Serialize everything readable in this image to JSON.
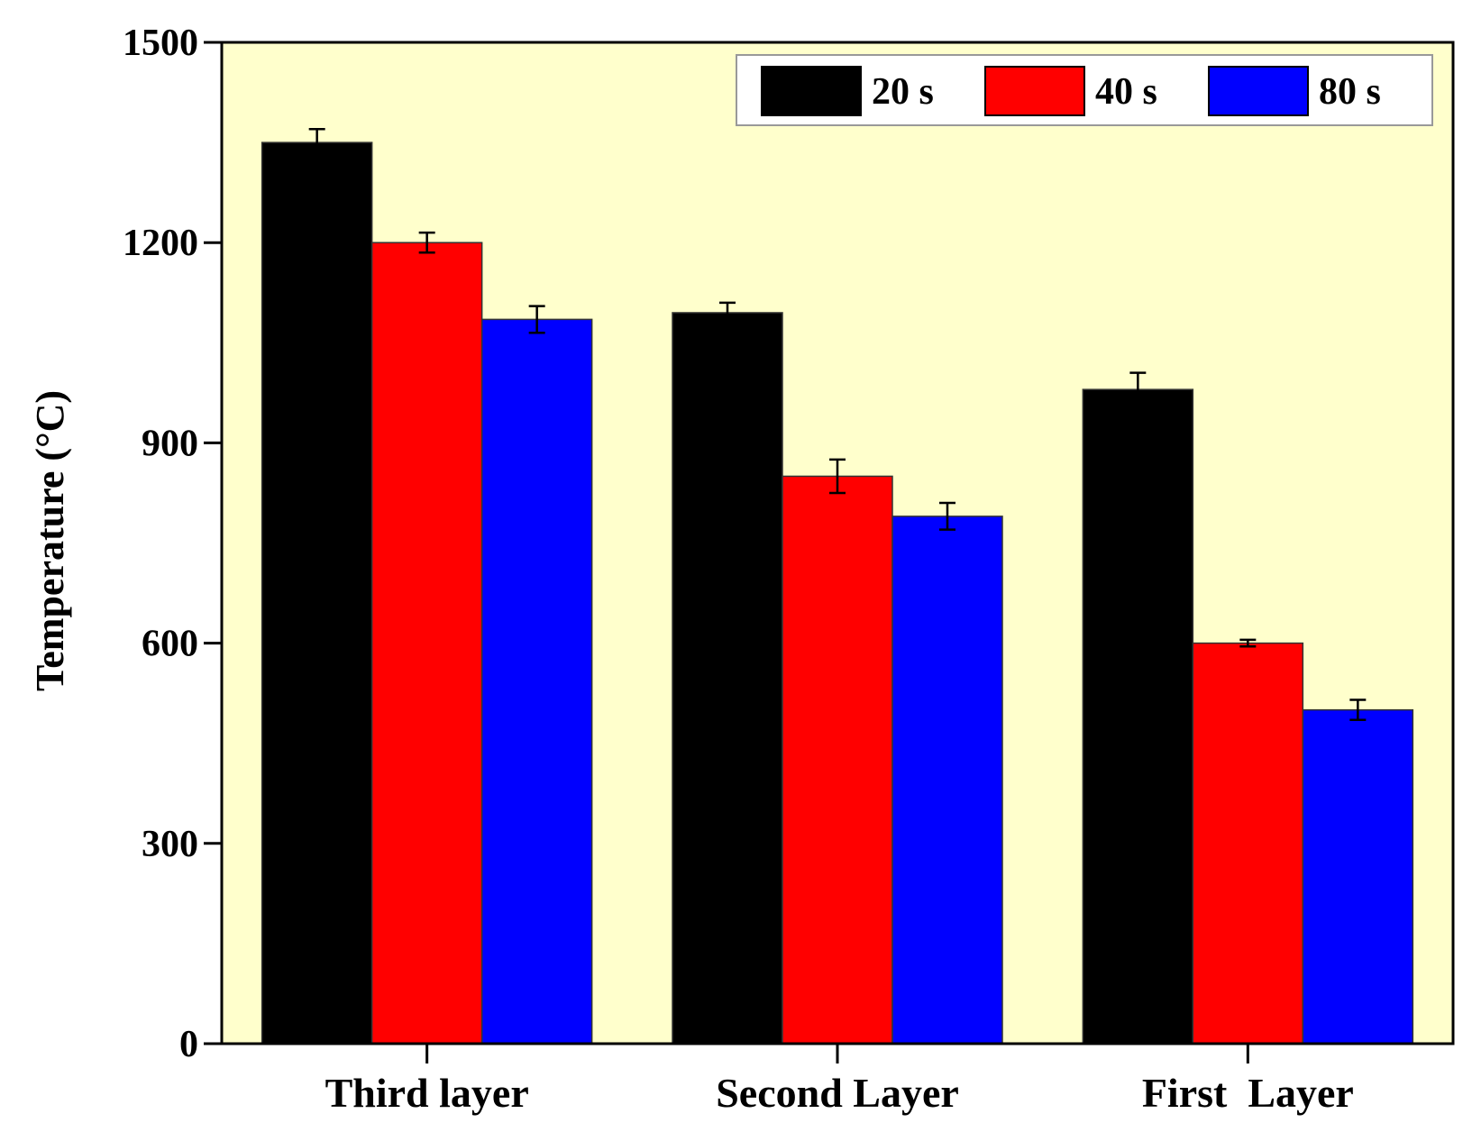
{
  "chart_data": {
    "type": "bar",
    "y_label": "Temperature (°C)",
    "categories": [
      "Third layer",
      "Second Layer",
      "First  Layer"
    ],
    "series": [
      {
        "name": "20 s",
        "color": "#000000",
        "values": [
          1350,
          1095,
          980
        ],
        "errors": [
          20,
          15,
          25
        ]
      },
      {
        "name": "40 s",
        "color": "#ff0000",
        "values": [
          1200,
          850,
          600
        ],
        "errors": [
          15,
          25,
          5
        ]
      },
      {
        "name": "80 s",
        "color": "#0000ff",
        "values": [
          1085,
          790,
          500
        ],
        "errors": [
          20,
          20,
          15
        ]
      }
    ],
    "ylim": [
      0,
      1500
    ],
    "yticks": [
      0,
      300,
      600,
      900,
      1200,
      1500
    ],
    "background": "#ffffcc",
    "legend": "top-right"
  }
}
